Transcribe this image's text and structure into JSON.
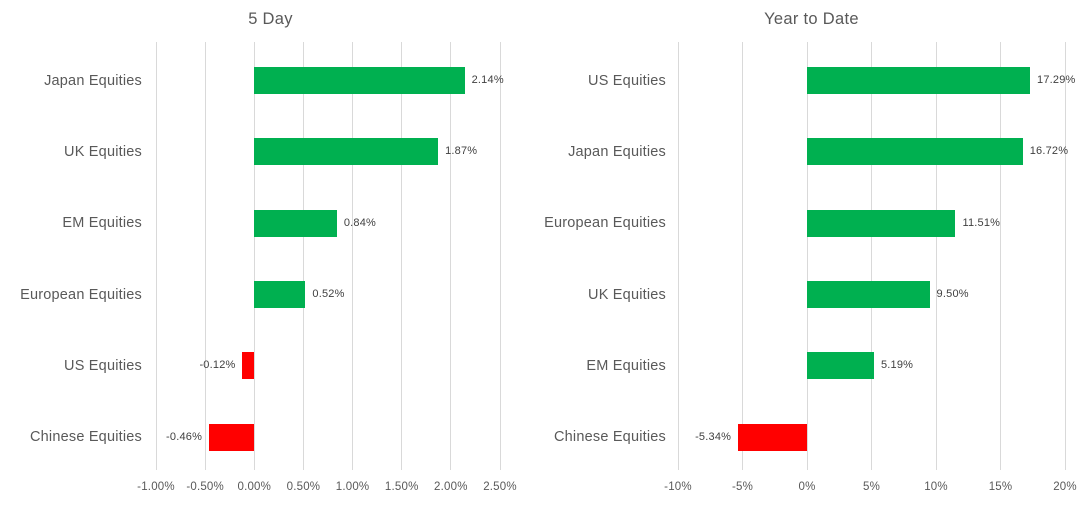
{
  "colors": {
    "background": "#FFFFFF",
    "positive_bar": "#00B050",
    "negative_bar": "#FF0000",
    "gridline": "#D9D9D9",
    "title_text": "#595959",
    "category_text": "#595959",
    "axis_text": "#595959",
    "value_text": "#404040"
  },
  "chart_data": [
    {
      "type": "bar",
      "orientation": "horizontal",
      "title": "5 Day",
      "categories": [
        "Japan Equities",
        "UK Equities",
        "EM Equities",
        "European Equities",
        "US Equities",
        "Chinese Equities"
      ],
      "values": [
        2.14,
        1.87,
        0.84,
        0.52,
        -0.12,
        -0.46
      ],
      "value_labels": [
        "2.14%",
        "1.87%",
        "0.84%",
        "0.52%",
        "-0.12%",
        "-0.46%"
      ],
      "xlim": [
        -1.0,
        2.5
      ],
      "ticks": [
        -1.0,
        -0.5,
        0.0,
        0.5,
        1.0,
        1.5,
        2.0,
        2.5
      ],
      "tick_labels": [
        "-1.00%",
        "-0.50%",
        "0.00%",
        "0.50%",
        "1.00%",
        "1.50%",
        "2.00%",
        "2.50%"
      ],
      "grid": "vertical-on",
      "legend": "none",
      "bar_color_rule": "positive=green, negative=red"
    },
    {
      "type": "bar",
      "orientation": "horizontal",
      "title": "Year to Date",
      "categories": [
        "US Equities",
        "Japan Equities",
        "European Equities",
        "UK Equities",
        "EM Equities",
        "Chinese Equities"
      ],
      "values": [
        17.29,
        16.72,
        11.51,
        9.5,
        5.19,
        -5.34
      ],
      "value_labels": [
        "17.29%",
        "16.72%",
        "11.51%",
        "9.50%",
        "5.19%",
        "-5.34%"
      ],
      "xlim": [
        -10,
        20
      ],
      "ticks": [
        -10,
        -5,
        0,
        5,
        10,
        15,
        20
      ],
      "tick_labels": [
        "-10%",
        "-5%",
        "0%",
        "5%",
        "10%",
        "15%",
        "20%"
      ],
      "grid": "vertical-on",
      "legend": "none",
      "bar_color_rule": "positive=green, negative=red"
    }
  ]
}
